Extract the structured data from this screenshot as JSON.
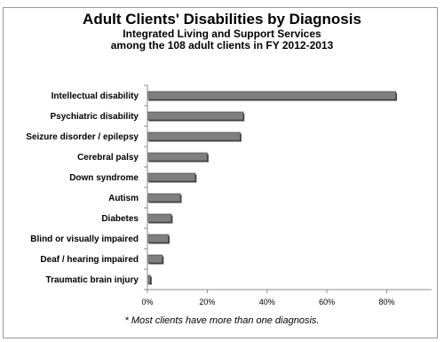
{
  "chart_data": {
    "type": "bar",
    "orientation": "horizontal",
    "title": "Adult Clients' Disabilities by Diagnosis",
    "subtitle_line1": "Integrated Living and Support Services",
    "subtitle_line2": "among  the 108 adult clients in FY 2012-2013",
    "categories": [
      "Intellectual disability",
      "Psychiatric disability",
      "Seizure disorder / epilepsy",
      "Cerebral palsy",
      "Down syndrome",
      "Autism",
      "Diabetes",
      "Blind or visually impaired",
      "Deaf / hearing impaired",
      "Traumatic brain injury"
    ],
    "values": [
      83,
      32,
      31,
      20,
      16,
      11,
      8,
      7,
      5,
      1
    ],
    "unit": "%",
    "xlim": [
      0,
      95
    ],
    "xticks": [
      0,
      20,
      40,
      60,
      80
    ],
    "xtick_labels": [
      "0%",
      "20%",
      "40%",
      "60%",
      "80%"
    ],
    "grid": false,
    "legend": "none",
    "bar_color": "#7f7f7f",
    "bar_edge_color": "#3a3a3a",
    "note": "* Most clients have more than one diagnosis."
  }
}
